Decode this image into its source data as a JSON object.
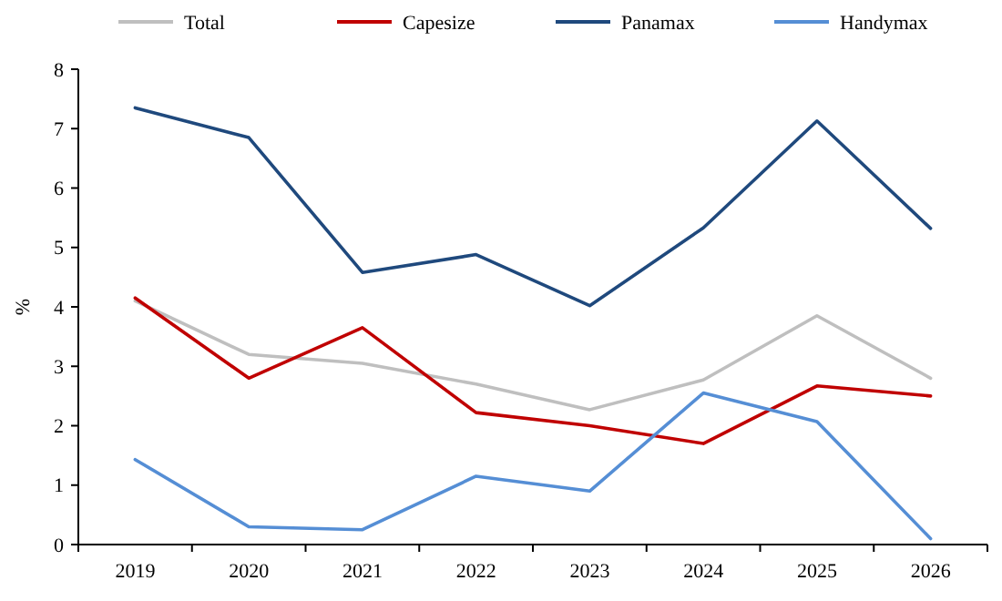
{
  "chart_data": {
    "type": "line",
    "ylabel": "%",
    "categories": [
      "2019",
      "2020",
      "2021",
      "2022",
      "2023",
      "2024",
      "2025",
      "2026"
    ],
    "series": [
      {
        "name": "Total",
        "color": "#bfbfbf",
        "values": [
          4.1,
          3.2,
          3.05,
          2.7,
          2.27,
          2.77,
          3.85,
          2.8
        ]
      },
      {
        "name": "Capesize",
        "color": "#c00000",
        "values": [
          4.15,
          2.8,
          3.65,
          2.22,
          2.0,
          1.7,
          2.67,
          2.5
        ]
      },
      {
        "name": "Panamax",
        "color": "#1f497d",
        "values": [
          7.35,
          6.85,
          4.58,
          4.88,
          4.02,
          5.33,
          7.13,
          5.32
        ]
      },
      {
        "name": "Handymax",
        "color": "#558ed5",
        "values": [
          1.43,
          0.3,
          0.25,
          1.15,
          0.9,
          2.55,
          2.07,
          0.1
        ]
      }
    ],
    "ylim": [
      0,
      8
    ],
    "yticks": [
      0,
      1,
      2,
      3,
      4,
      5,
      6,
      7,
      8
    ],
    "legend": "top",
    "grid": false,
    "marker": "none",
    "line_style": "solid"
  }
}
